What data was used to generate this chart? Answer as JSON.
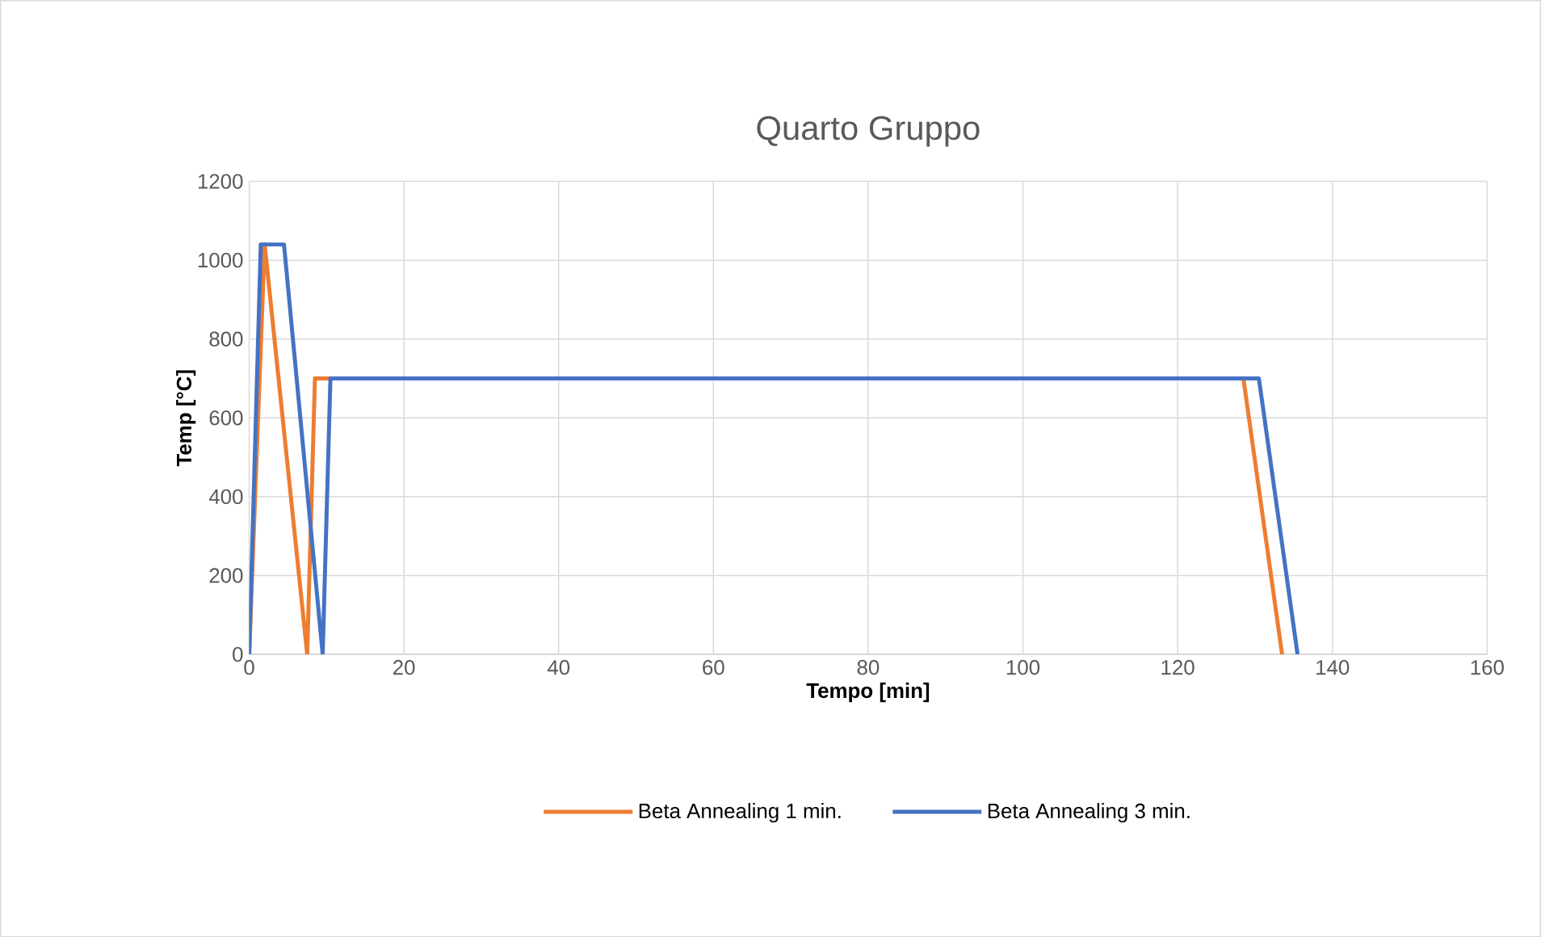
{
  "chart_data": {
    "type": "line",
    "title": "Quarto Gruppo",
    "xlabel": "Tempo [min]",
    "ylabel": "Temp [°C]",
    "xlim": [
      0,
      160
    ],
    "xticks": [
      0,
      20,
      40,
      60,
      80,
      100,
      120,
      140,
      160
    ],
    "ylim": [
      0,
      1200
    ],
    "yticks": [
      0,
      200,
      400,
      600,
      800,
      1000,
      1200
    ],
    "grid": true,
    "legend": "bottom",
    "marker": "none",
    "line_style": "solid",
    "series": [
      {
        "name": "Beta Annealing 1 min.",
        "color": "#ed7d31",
        "x": [
          0,
          2,
          7.5,
          8.5,
          128.5,
          133.5
        ],
        "values": [
          0,
          1040,
          0,
          700,
          700,
          0
        ]
      },
      {
        "name": "Beta Annealing 3 min.",
        "color": "#4472c4",
        "x": [
          0,
          1.5,
          4.5,
          9.5,
          10.5,
          130.5,
          135.5
        ],
        "values": [
          0,
          1040,
          1040,
          0,
          700,
          700,
          0
        ]
      }
    ]
  }
}
